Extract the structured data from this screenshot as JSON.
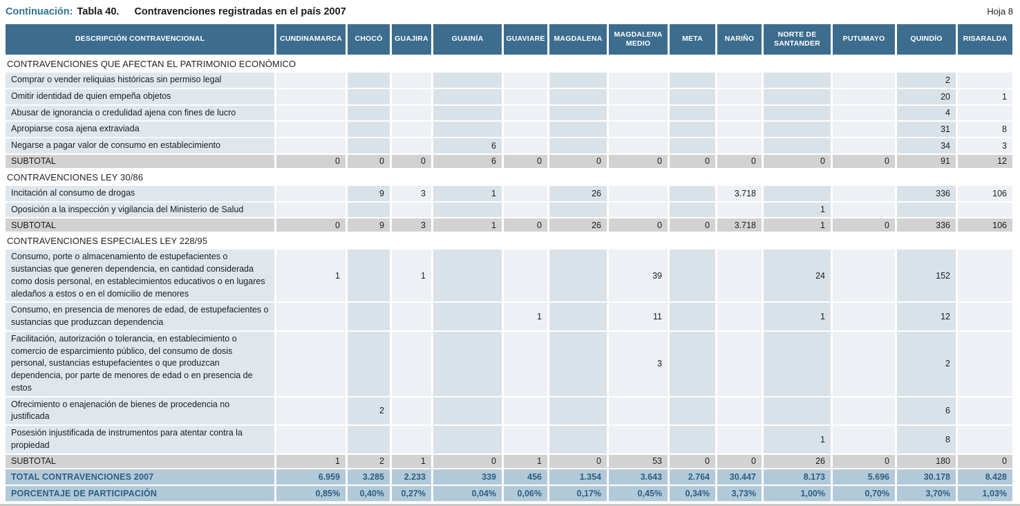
{
  "page": {
    "continuation_label": "Continuación:",
    "table_label": "Tabla 40.",
    "title": "Contravenciones registradas en el país 2007",
    "sheet_label": "Hoja 8"
  },
  "colors": {
    "header-bg": "#3d6d8e",
    "title-blue": "#2e7296",
    "desc-cell": "#dfe7ed",
    "col-light": "#edf1f5",
    "col-dark": "#d9e2e9",
    "subtotal-bg": "#d2d2d2",
    "total-bg": "#b2c9da",
    "total-text": "#2e5e7e"
  },
  "table": {
    "description_header": "DESCRIPCIÓN CONTRAVENCIONAL",
    "columns": [
      "CUNDINAMARCA",
      "CHOCÓ",
      "GUAJIRA",
      "GUAINÍA",
      "GUAVIARE",
      "MAGDALENA",
      "MAGDALENA MEDIO",
      "META",
      "NARIÑO",
      "NORTE DE SANTANDER",
      "PUTUMAYO",
      "QUINDÍO",
      "RISARALDA"
    ],
    "sections": [
      {
        "title": "CONTRAVENCIONES QUE AFECTAN EL PATRIMONIO ECONÓMICO",
        "rows": [
          {
            "desc": "Comprar o vender reliquias históricas sin permiso legal",
            "values": [
              "",
              "",
              "",
              "",
              "",
              "",
              "",
              "",
              "",
              "",
              "",
              "2",
              ""
            ]
          },
          {
            "desc": "Omitir identidad de quien empeña objetos",
            "values": [
              "",
              "",
              "",
              "",
              "",
              "",
              "",
              "",
              "",
              "",
              "",
              "20",
              "1"
            ]
          },
          {
            "desc": "Abusar de ignorancia o credulidad ajena con fines de lucro",
            "values": [
              "",
              "",
              "",
              "",
              "",
              "",
              "",
              "",
              "",
              "",
              "",
              "4",
              ""
            ]
          },
          {
            "desc": "Apropiarse cosa ajena extraviada",
            "values": [
              "",
              "",
              "",
              "",
              "",
              "",
              "",
              "",
              "",
              "",
              "",
              "31",
              "8"
            ]
          },
          {
            "desc": "Negarse a pagar valor de consumo en establecimiento",
            "values": [
              "",
              "",
              "",
              "6",
              "",
              "",
              "",
              "",
              "",
              "",
              "",
              "34",
              "3"
            ]
          }
        ],
        "subtotal": {
          "label": "SUBTOTAL",
          "values": [
            "0",
            "0",
            "0",
            "6",
            "0",
            "0",
            "0",
            "0",
            "0",
            "0",
            "0",
            "91",
            "12"
          ]
        }
      },
      {
        "title": "CONTRAVENCIONES LEY 30/86",
        "rows": [
          {
            "desc": "Incitación al consumo de drogas",
            "values": [
              "",
              "9",
              "3",
              "1",
              "",
              "26",
              "",
              "",
              "3.718",
              "",
              "",
              "336",
              "106"
            ]
          },
          {
            "desc": "Oposición a la inspección y vigilancia del Ministerio de Salud",
            "values": [
              "",
              "",
              "",
              "",
              "",
              "",
              "",
              "",
              "",
              "1",
              "",
              "",
              ""
            ]
          }
        ],
        "subtotal": {
          "label": "SUBTOTAL",
          "values": [
            "0",
            "9",
            "3",
            "1",
            "0",
            "26",
            "0",
            "0",
            "3.718",
            "1",
            "0",
            "336",
            "106"
          ]
        }
      },
      {
        "title": "CONTRAVENCIONES ESPECIALES LEY 228/95",
        "rows": [
          {
            "desc": "Consumo, porte o almacenamiento de estupefacientes o sustancias que generen dependencia, en cantidad considerada como dosis personal, en establecimientos educativos o en lugares aledaños a estos o en el domicilio de menores",
            "values": [
              "1",
              "",
              "1",
              "",
              "",
              "",
              "39",
              "",
              "",
              "24",
              "",
              "152",
              ""
            ]
          },
          {
            "desc": "Consumo, en presencia de menores de edad, de estupefacientes o sustancias que produzcan dependencia",
            "values": [
              "",
              "",
              "",
              "",
              "1",
              "",
              "11",
              "",
              "",
              "1",
              "",
              "12",
              ""
            ]
          },
          {
            "desc": "Facilitación, autorización o tolerancia, en establecimiento o comercio de esparcimiento público, del consumo de dosis personal, sustancias estupefacientes o que produzcan dependencia, por parte de menores de edad o en presencia de estos",
            "values": [
              "",
              "",
              "",
              "",
              "",
              "",
              "3",
              "",
              "",
              "",
              "",
              "2",
              ""
            ]
          },
          {
            "desc": "Ofrecimiento o enajenación de bienes de procedencia no justificada",
            "values": [
              "",
              "2",
              "",
              "",
              "",
              "",
              "",
              "",
              "",
              "",
              "",
              "6",
              ""
            ]
          },
          {
            "desc": "Posesión injustificada de instrumentos para atentar contra la propiedad",
            "values": [
              "",
              "",
              "",
              "",
              "",
              "",
              "",
              "",
              "",
              "1",
              "",
              "8",
              ""
            ]
          }
        ],
        "subtotal": {
          "label": "SUBTOTAL",
          "values": [
            "1",
            "2",
            "1",
            "0",
            "1",
            "0",
            "53",
            "0",
            "0",
            "26",
            "0",
            "180",
            "0"
          ]
        }
      }
    ],
    "total_row": {
      "label": "TOTAL CONTRAVENCIONES 2007",
      "values": [
        "6.959",
        "3.285",
        "2.233",
        "339",
        "456",
        "1.354",
        "3.643",
        "2.764",
        "30.447",
        "8.173",
        "5.696",
        "30.178",
        "8.428"
      ]
    },
    "percent_row": {
      "label": "PORCENTAJE DE PARTICIPACIÓN",
      "values": [
        "0,85%",
        "0,40%",
        "0,27%",
        "0,04%",
        "0,06%",
        "0,17%",
        "0,45%",
        "0,34%",
        "3,73%",
        "1,00%",
        "0,70%",
        "3,70%",
        "1,03%"
      ]
    }
  }
}
